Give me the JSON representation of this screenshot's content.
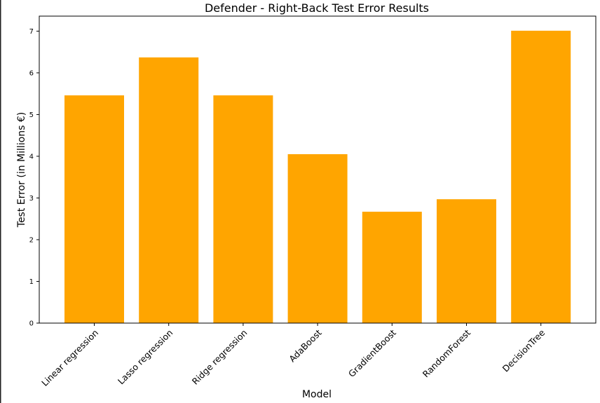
{
  "chart_data": {
    "type": "bar",
    "title": "Defender - Right-Back Test Error Results",
    "xlabel": "Model",
    "ylabel": "Test Error (in Millions €)",
    "categories": [
      "Linear regression",
      "Lasso regression",
      "Ridge regression",
      "AdaBoost",
      "GradientBoost",
      "RandomForest",
      "DecisionTree"
    ],
    "values": [
      5.46,
      6.37,
      5.46,
      4.05,
      2.67,
      2.97,
      7.01
    ],
    "ylim": [
      0,
      7.36
    ],
    "yticks": [
      "0",
      "1",
      "2",
      "3",
      "4",
      "5",
      "6",
      "7"
    ],
    "bar_color": "#ffa500",
    "grid": false,
    "legend": "none"
  }
}
